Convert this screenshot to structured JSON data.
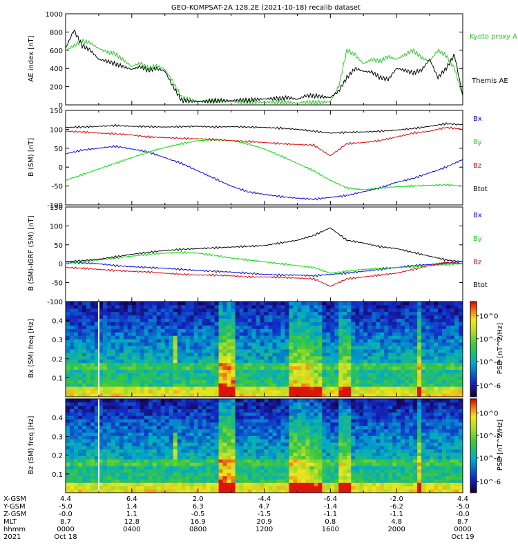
{
  "title": "GEO-KOMPSAT-2A 128.2E (2021-10-18) recalib dataset",
  "colors": {
    "black": "#000000",
    "blue": "#0000dd",
    "green": "#00dd00",
    "red": "#dd0000",
    "kyoto": "#22cc22"
  },
  "chart_data": [
    {
      "type": "line",
      "ylabel": "AE index [nT]",
      "ylim": [
        0,
        1000
      ],
      "yticks": [
        "1000",
        "800",
        "600",
        "400",
        "200",
        "0"
      ],
      "x_hours": [
        0,
        0.5,
        1,
        1.5,
        2,
        2.5,
        3,
        3.5,
        4,
        4.5,
        5,
        5.5,
        6,
        6.5,
        7,
        7.5,
        8,
        8.5,
        9,
        9.5,
        10,
        10.5,
        11,
        11.5,
        12,
        12.5,
        13,
        13.5,
        14,
        14.5,
        15,
        15.5,
        16,
        16.5,
        17,
        17.5,
        18,
        18.5,
        19,
        19.5,
        20,
        20.5,
        21,
        21.5,
        22,
        22.5,
        23,
        23.5,
        24
      ],
      "series": [
        {
          "name": "Kyoto proxy AE",
          "color": "#22cc22",
          "values": [
            600,
            650,
            700,
            680,
            620,
            580,
            560,
            490,
            420,
            460,
            400,
            430,
            390,
            250,
            80,
            60,
            40,
            40,
            45,
            40,
            35,
            30,
            35,
            30,
            30,
            30,
            30,
            25,
            20,
            30,
            25,
            30,
            35,
            200,
            600,
            550,
            450,
            500,
            480,
            530,
            500,
            550,
            600,
            520,
            480,
            600,
            540,
            400,
            100
          ]
        },
        {
          "name": "Themis AE",
          "color": "#000000",
          "values": [
            620,
            820,
            650,
            600,
            500,
            480,
            450,
            420,
            390,
            420,
            380,
            400,
            370,
            200,
            50,
            40,
            35,
            40,
            45,
            50,
            45,
            55,
            50,
            60,
            65,
            70,
            70,
            80,
            60,
            100,
            100,
            90,
            80,
            150,
            300,
            400,
            370,
            360,
            300,
            280,
            400,
            380,
            350,
            380,
            500,
            300,
            400,
            550,
            100
          ]
        }
      ]
    },
    {
      "type": "line",
      "ylabel": "B (SM) [nT]",
      "ylim": [
        -100,
        150
      ],
      "yticks": [
        "150",
        "100",
        "50",
        "0",
        "-50",
        "-100"
      ],
      "x_hours": [
        0,
        1,
        2,
        3,
        4,
        5,
        6,
        7,
        8,
        9,
        10,
        11,
        12,
        13,
        14,
        15,
        16,
        17,
        18,
        19,
        20,
        21,
        22,
        23,
        24
      ],
      "series": [
        {
          "name": "Bx",
          "color": "#0000dd",
          "values": [
            35,
            45,
            50,
            55,
            48,
            40,
            25,
            10,
            -10,
            -30,
            -50,
            -65,
            -72,
            -78,
            -82,
            -85,
            -80,
            -75,
            -65,
            -55,
            -40,
            -30,
            -15,
            0,
            20
          ]
        },
        {
          "name": "By",
          "color": "#00dd00",
          "values": [
            -35,
            -20,
            -5,
            10,
            25,
            40,
            52,
            62,
            70,
            72,
            70,
            62,
            48,
            30,
            10,
            -10,
            -35,
            -55,
            -60,
            -55,
            -52,
            -50,
            -48,
            -47,
            -50
          ]
        },
        {
          "name": "Bz",
          "color": "#dd0000",
          "values": [
            95,
            93,
            90,
            88,
            85,
            80,
            78,
            76,
            75,
            73,
            70,
            68,
            65,
            62,
            60,
            58,
            30,
            62,
            65,
            70,
            80,
            90,
            95,
            105,
            100
          ]
        },
        {
          "name": "Btot",
          "color": "#000000",
          "values": [
            105,
            106,
            108,
            110,
            108,
            107,
            106,
            107,
            108,
            106,
            107,
            106,
            105,
            103,
            100,
            95,
            90,
            92,
            93,
            95,
            98,
            102,
            108,
            115,
            112
          ]
        }
      ]
    },
    {
      "type": "line",
      "ylabel": "B (SM)-IGRF (SM) [nT]",
      "ylim": [
        -100,
        150
      ],
      "yticks": [
        "150",
        "100",
        "50",
        "0",
        "-50",
        "-100"
      ],
      "x_hours": [
        0,
        1,
        2,
        3,
        4,
        5,
        6,
        7,
        8,
        9,
        10,
        11,
        12,
        13,
        14,
        15,
        16,
        17,
        18,
        19,
        20,
        21,
        22,
        23,
        24
      ],
      "series": [
        {
          "name": "Bx",
          "color": "#0000dd",
          "values": [
            5,
            2,
            0,
            -5,
            -8,
            -10,
            -12,
            -15,
            -18,
            -20,
            -22,
            -25,
            -28,
            -30,
            -30,
            -32,
            -28,
            -25,
            -20,
            -15,
            -10,
            -5,
            -2,
            2,
            5
          ]
        },
        {
          "name": "By",
          "color": "#00dd00",
          "values": [
            0,
            5,
            10,
            15,
            20,
            25,
            28,
            30,
            28,
            22,
            15,
            10,
            5,
            0,
            -5,
            -10,
            -25,
            -20,
            -15,
            -12,
            -10,
            -8,
            -5,
            -2,
            0
          ]
        },
        {
          "name": "Bz",
          "color": "#dd0000",
          "values": [
            -10,
            -12,
            -15,
            -18,
            -20,
            -22,
            -25,
            -28,
            -30,
            -30,
            -32,
            -35,
            -35,
            -36,
            -38,
            -40,
            -60,
            -40,
            -35,
            -30,
            -25,
            -15,
            -5,
            3,
            0
          ]
        },
        {
          "name": "Btot",
          "color": "#000000",
          "values": [
            5,
            8,
            12,
            18,
            25,
            30,
            35,
            38,
            40,
            42,
            44,
            46,
            48,
            55,
            62,
            75,
            95,
            62,
            55,
            45,
            40,
            30,
            20,
            10,
            5
          ]
        }
      ]
    },
    {
      "type": "heatmap",
      "ylabel": "Bx (SM) freq [Hz]",
      "ylim": [
        0,
        0.5
      ],
      "yticks": [
        "0.4",
        "0.3",
        "0.2",
        "0.1"
      ],
      "colorbar_label": "PSD [nT^2/Hz]",
      "colorbar_ticks": [
        "10^0",
        "10^-2",
        "10^-4",
        "10^-6"
      ]
    },
    {
      "type": "heatmap",
      "ylabel": "Bz (SM) freq [Hz]",
      "ylim": [
        0,
        0.5
      ],
      "yticks": [
        "0.4",
        "0.3",
        "0.2",
        "0.1"
      ],
      "colorbar_label": "PSD [nT^2/Hz]",
      "colorbar_ticks": [
        "10^0",
        "10^-2",
        "10^-4",
        "10^-6"
      ]
    }
  ],
  "axis_table": {
    "row_labels": [
      "X-GSM",
      "Y-GSM",
      "Z-GSM",
      "MLT",
      "hhmm",
      "2021"
    ],
    "columns": [
      [
        "4.4",
        "-5.0",
        "-0.0",
        "8.7",
        "0000",
        "Oct 18"
      ],
      [
        "6.4",
        "1.4",
        "1.1",
        "12.8",
        "0400",
        ""
      ],
      [
        "2.0",
        "6.3",
        "-0.5",
        "16.9",
        "0800",
        ""
      ],
      [
        "-4.4",
        "4.7",
        "-1.5",
        "20.9",
        "1200",
        ""
      ],
      [
        "-6.4",
        "-1.4",
        "-1.1",
        "0.8",
        "1600",
        ""
      ],
      [
        "-2.0",
        "-6.2",
        "-1.1",
        "4.8",
        "2000",
        ""
      ],
      [
        "4.4",
        "-5.0",
        "-0.0",
        "8.7",
        "0000",
        "Oct 19"
      ]
    ]
  }
}
